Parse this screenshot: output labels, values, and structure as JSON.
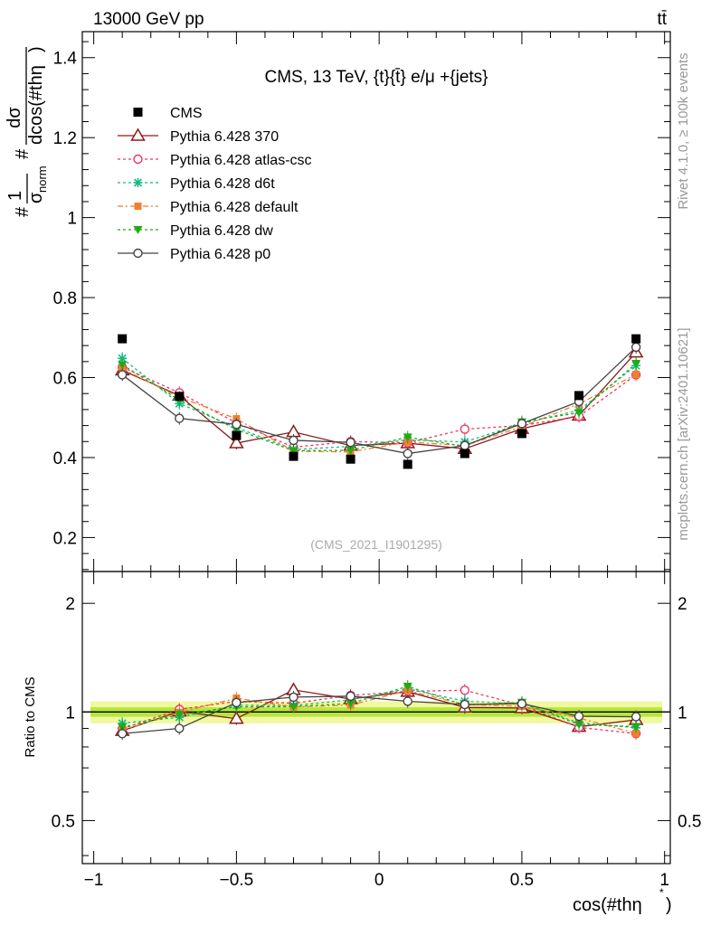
{
  "header": {
    "energy_label": "13000 GeV pp",
    "process_label": "tt̄"
  },
  "side_labels": {
    "rivet": "Rivet 4.1.0, ≥ 100k events",
    "mcplots": "mcplots.cern.ch [arXiv:2401.10621]"
  },
  "chart_data": [
    {
      "type": "line",
      "panel": "main",
      "title": "CMS, 13 TeV, {t}{t̄} e/μ +{jets}",
      "watermark": "(CMS_2021_I1901295)",
      "ylabel_parts": {
        "prefix": "#",
        "one": "1",
        "sigma_norm": "σ",
        "sigma_sub": "norm",
        "hash": "#",
        "numerator": "dσ",
        "denominator": "dcos(#thη",
        "denominator_close": ")"
      },
      "xlabel": "cos(#thη",
      "xlabel_sup": "*",
      "xlabel_close": ")",
      "xlim": [
        -1.04,
        1.02
      ],
      "ylim": [
        0.115,
        1.465
      ],
      "yticks": [
        0.2,
        0.4,
        0.6,
        0.8,
        1.0,
        1.2,
        1.4
      ],
      "ytick_labels": [
        "0.2",
        "0.4",
        "0.6",
        "0.8",
        "1",
        "1.2",
        "1.4"
      ],
      "x": [
        -0.9,
        -0.7,
        -0.5,
        -0.3,
        -0.1,
        0.1,
        0.3,
        0.5,
        0.7,
        0.9
      ],
      "series": [
        {
          "name": "CMS",
          "color": "#000000",
          "marker": "square",
          "dash": "none",
          "values": [
            0.697,
            0.553,
            0.455,
            0.403,
            0.396,
            0.383,
            0.41,
            0.46,
            0.555,
            0.697
          ]
        },
        {
          "name": "Pythia 6.428 370",
          "color": "#8b1a1a",
          "marker": "triangle-open",
          "dash": "solid",
          "values": [
            0.618,
            0.555,
            0.436,
            0.464,
            0.43,
            0.436,
            0.422,
            0.472,
            0.505,
            0.663
          ]
        },
        {
          "name": "Pythia 6.428 atlas-csc",
          "color": "#ee3366",
          "marker": "circle-open",
          "dash": "3,3",
          "values": [
            0.626,
            0.562,
            0.487,
            0.426,
            0.44,
            0.437,
            0.471,
            0.48,
            0.503,
            0.607
          ]
        },
        {
          "name": "Pythia 6.428 d6t",
          "color": "#11bb88",
          "marker": "star",
          "dash": "3,3",
          "values": [
            0.648,
            0.535,
            0.475,
            0.42,
            0.428,
            0.444,
            0.439,
            0.485,
            0.518,
            0.63
          ]
        },
        {
          "name": "Pythia 6.428 default",
          "color": "#f07f30",
          "marker": "square-small",
          "dash": "6,3,2,3",
          "values": [
            0.622,
            0.551,
            0.497,
            0.416,
            0.414,
            0.439,
            0.43,
            0.477,
            0.534,
            0.608
          ]
        },
        {
          "name": "Pythia 6.428 dw",
          "color": "#22aa11",
          "marker": "triangle-down",
          "dash": "3,3",
          "values": [
            0.632,
            0.544,
            0.47,
            0.417,
            0.418,
            0.451,
            0.428,
            0.489,
            0.512,
            0.635
          ]
        },
        {
          "name": "Pythia 6.428 p0",
          "color": "#444444",
          "marker": "circle-open",
          "dash": "solid",
          "values": [
            0.607,
            0.498,
            0.483,
            0.443,
            0.438,
            0.41,
            0.43,
            0.485,
            0.54,
            0.676
          ]
        }
      ]
    },
    {
      "type": "line",
      "panel": "ratio",
      "ylabel": "Ratio to CMS",
      "xlim": [
        -1.04,
        1.02
      ],
      "ylim": [
        0.38,
        2.45
      ],
      "yticks": [
        0.5,
        1.0,
        2.0
      ],
      "ytick_labels": [
        "0.5",
        "1",
        "2"
      ],
      "xticks": [
        -1.0,
        -0.5,
        0.0,
        0.5,
        1.0
      ],
      "xtick_labels": [
        "−1",
        "−0.5",
        "0",
        "0.5",
        "1"
      ],
      "reference": 1.0,
      "band_outer": [
        0.93,
        1.07
      ],
      "band_inner": [
        0.97,
        1.03
      ],
      "band_colors": {
        "outer": "#f0f8a0",
        "inner": "#b6e63c"
      }
    }
  ]
}
